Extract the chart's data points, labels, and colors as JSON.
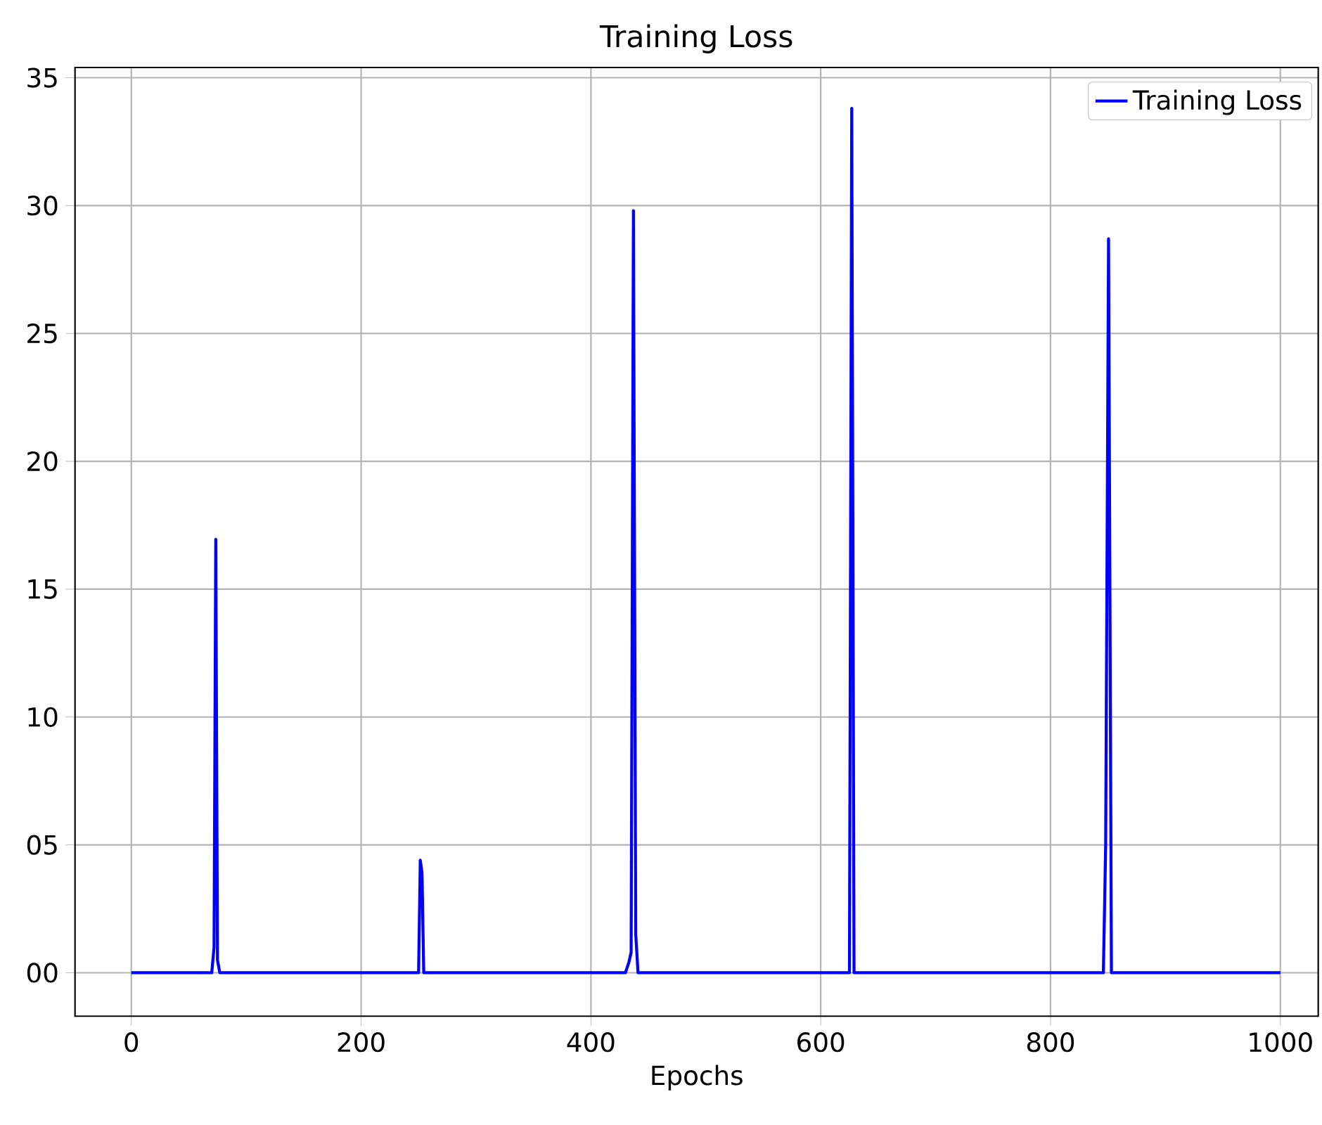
{
  "chart_data": {
    "type": "line",
    "title": "Training Loss",
    "xlabel": "Epochs",
    "series": [
      {
        "name": "Training Loss",
        "color": "#0000ff",
        "x": [
          0,
          70,
          72,
          73.5,
          75,
          77,
          248,
          250,
          251.5,
          253,
          254.5,
          256,
          430,
          433,
          435,
          437,
          439,
          441,
          623,
          625,
          627,
          629,
          631,
          844,
          846,
          848,
          850.5,
          853,
          855,
          1000
        ],
        "values": [
          0,
          0,
          1,
          16.95,
          0.5,
          0,
          0,
          0,
          4.4,
          3.9,
          0,
          0,
          0,
          0.4,
          0.8,
          29.8,
          1.5,
          0,
          0,
          0,
          33.8,
          0,
          0,
          0,
          0,
          5,
          28.7,
          0,
          0,
          0
        ]
      }
    ],
    "xlim": [
      -49,
      1033
    ],
    "ylim": [
      -1.7,
      35.4
    ],
    "xticks": [
      0,
      200,
      400,
      600,
      800,
      1000
    ],
    "yticks": [
      {
        "value": 0,
        "label": "00"
      },
      {
        "value": 5,
        "label": "05"
      },
      10,
      15,
      20,
      25,
      30,
      35
    ],
    "grid": true,
    "legend": "top right",
    "marker": "none",
    "line_style": "solid"
  }
}
